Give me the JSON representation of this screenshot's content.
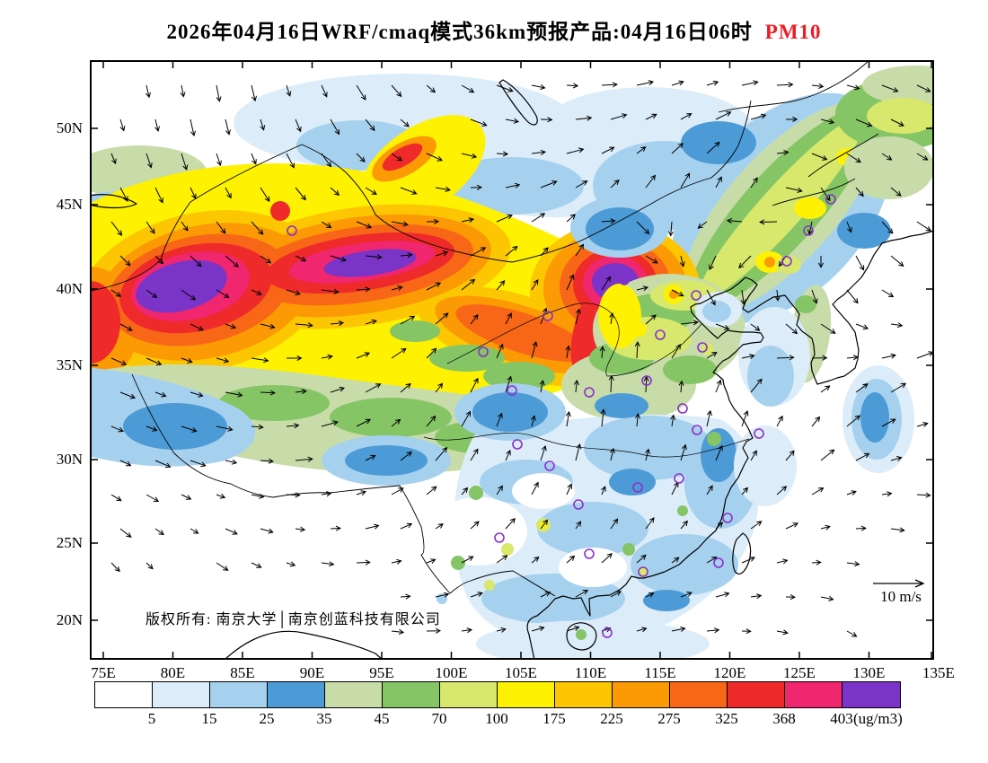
{
  "title": {
    "prefix": "2026年04月16日WRF/cmaq模式36km预报产品:04月16日06时",
    "species": "PM10",
    "species_color": "#ee1c25"
  },
  "map": {
    "copyright": "版权所有: 南京大学│南京创蓝科技有限公司",
    "wind_ref_label": "10 m/s"
  },
  "axes": {
    "lat_ticks": [
      "50N",
      "45N",
      "40N",
      "35N",
      "30N",
      "25N",
      "20N"
    ],
    "lon_ticks": [
      "75E",
      "80E",
      "85E",
      "90E",
      "95E",
      "100E",
      "105E",
      "110E",
      "115E",
      "120E",
      "125E",
      "130E",
      "135E"
    ]
  },
  "colorbar": {
    "labels": [
      "5",
      "15",
      "25",
      "35",
      "45",
      "70",
      "100",
      "175",
      "225",
      "275",
      "325",
      "368",
      "403"
    ],
    "unit": "(ug/m3)"
  },
  "chart_data": {
    "type": "heatmap",
    "title": "2026年04月16日WRF/cmaq模式36km预报产品:04月16日06时 PM10",
    "variable": "PM10",
    "unit": "ug/m3",
    "model": "WRF/cmaq",
    "grid_resolution": "36km",
    "init_date": "2026年04月16日",
    "valid_time": "04月16日06时",
    "levels": [
      5,
      15,
      25,
      35,
      45,
      70,
      100,
      175,
      225,
      275,
      325,
      368,
      403
    ],
    "palette": [
      "#ffffff",
      "#dcedf9",
      "#a6d1ee",
      "#4d9bd6",
      "#c8dcaa",
      "#86c566",
      "#d7e86c",
      "#fef102",
      "#fcc602",
      "#fb9a05",
      "#f76717",
      "#ee2a2a",
      "#f0266e",
      "#7a35c8"
    ],
    "lon_ticks_deg": [
      75,
      80,
      85,
      90,
      95,
      100,
      105,
      110,
      115,
      120,
      125,
      130,
      135
    ],
    "lat_ticks_deg": [
      50,
      45,
      40,
      35,
      30,
      25,
      20
    ],
    "wind_reference_ms": 10,
    "legend_position": "bottom",
    "overlays": [
      "filled-contours",
      "wind-vectors",
      "station-markers",
      "coastlines",
      "country-borders",
      "rivers"
    ],
    "max_value_regions_color": "#7a35c8",
    "station_marker_color": "#8b2fc9"
  }
}
